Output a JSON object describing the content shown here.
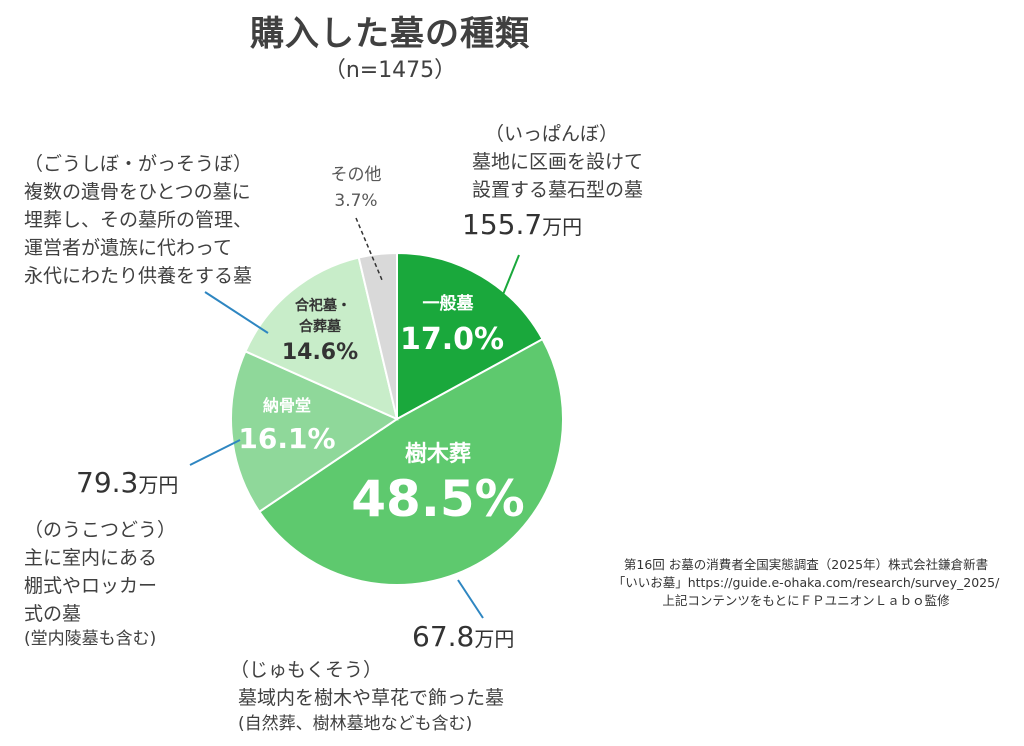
{
  "chart_data": {
    "type": "pie",
    "title": "購入した墓の種類",
    "subtitle": "（n=1475）",
    "start_angle_deg": 0,
    "direction": "clockwise",
    "slices": [
      {
        "label": "一般墓",
        "value": 17.0,
        "value_label": "17.0%",
        "color": "#1aa83c",
        "text_color": "#ffffff"
      },
      {
        "label": "樹木葬",
        "value": 48.5,
        "value_label": "48.5%",
        "color": "#5ec96e",
        "text_color": "#ffffff"
      },
      {
        "label": "納骨堂",
        "value": 16.1,
        "value_label": "16.1%",
        "color": "#8fd89a",
        "text_color": "#ffffff"
      },
      {
        "label_lines": [
          "合祀墓・",
          "合葬墓"
        ],
        "value": 14.6,
        "value_label": "14.6%",
        "color": "#c8edc9",
        "text_color": "#333333"
      },
      {
        "label": "その他",
        "value": 3.7,
        "value_label": "3.7%",
        "color": "#d9d9d9",
        "text_color": "#595959"
      }
    ]
  },
  "annotations": {
    "ippanbo": {
      "reading": "（いっぱんぼ）",
      "lines": [
        "墓地に区画を設けて",
        "設置する墓石型の墓"
      ],
      "price": "155.7",
      "unit": "万円"
    },
    "jumokuso": {
      "reading": "（じゅもくそう）",
      "line1": "墓域内を樹木や草花で飾った墓",
      "note": "(自然葬、樹林墓地なども含む)",
      "price": "67.8",
      "unit": "万円"
    },
    "nokotsudo": {
      "reading": "（のうこつどう）",
      "lines": [
        "主に室内にある",
        "棚式やロッカー",
        "式の墓"
      ],
      "note": "(堂内陵墓も含む)",
      "price": "79.3",
      "unit": "万円"
    },
    "goushibo": {
      "reading": "（ごうしぼ・がっそうぼ）",
      "lines": [
        "複数の遺骨をひとつの墓に",
        "埋葬し、その墓所の管理、",
        "運営者が遺族に代わって",
        "永代にわたり供養をする墓"
      ]
    },
    "sonota": {
      "label": "その他",
      "value": "3.7%"
    }
  },
  "source": {
    "lines": [
      "第16回 お墓の消費者全国実態調査（2025年）株式会社鎌倉新書",
      "「いいお墓」https://guide.e-ohaka.com/research/survey_2025/",
      "上記コンテンツをもとにＦＰユニオンＬａｂｏ監修"
    ]
  },
  "colors": {
    "leader_line_blue": "#2e86c1",
    "leader_line_green": "#1aa83c",
    "leader_line_dark": "#333333"
  }
}
